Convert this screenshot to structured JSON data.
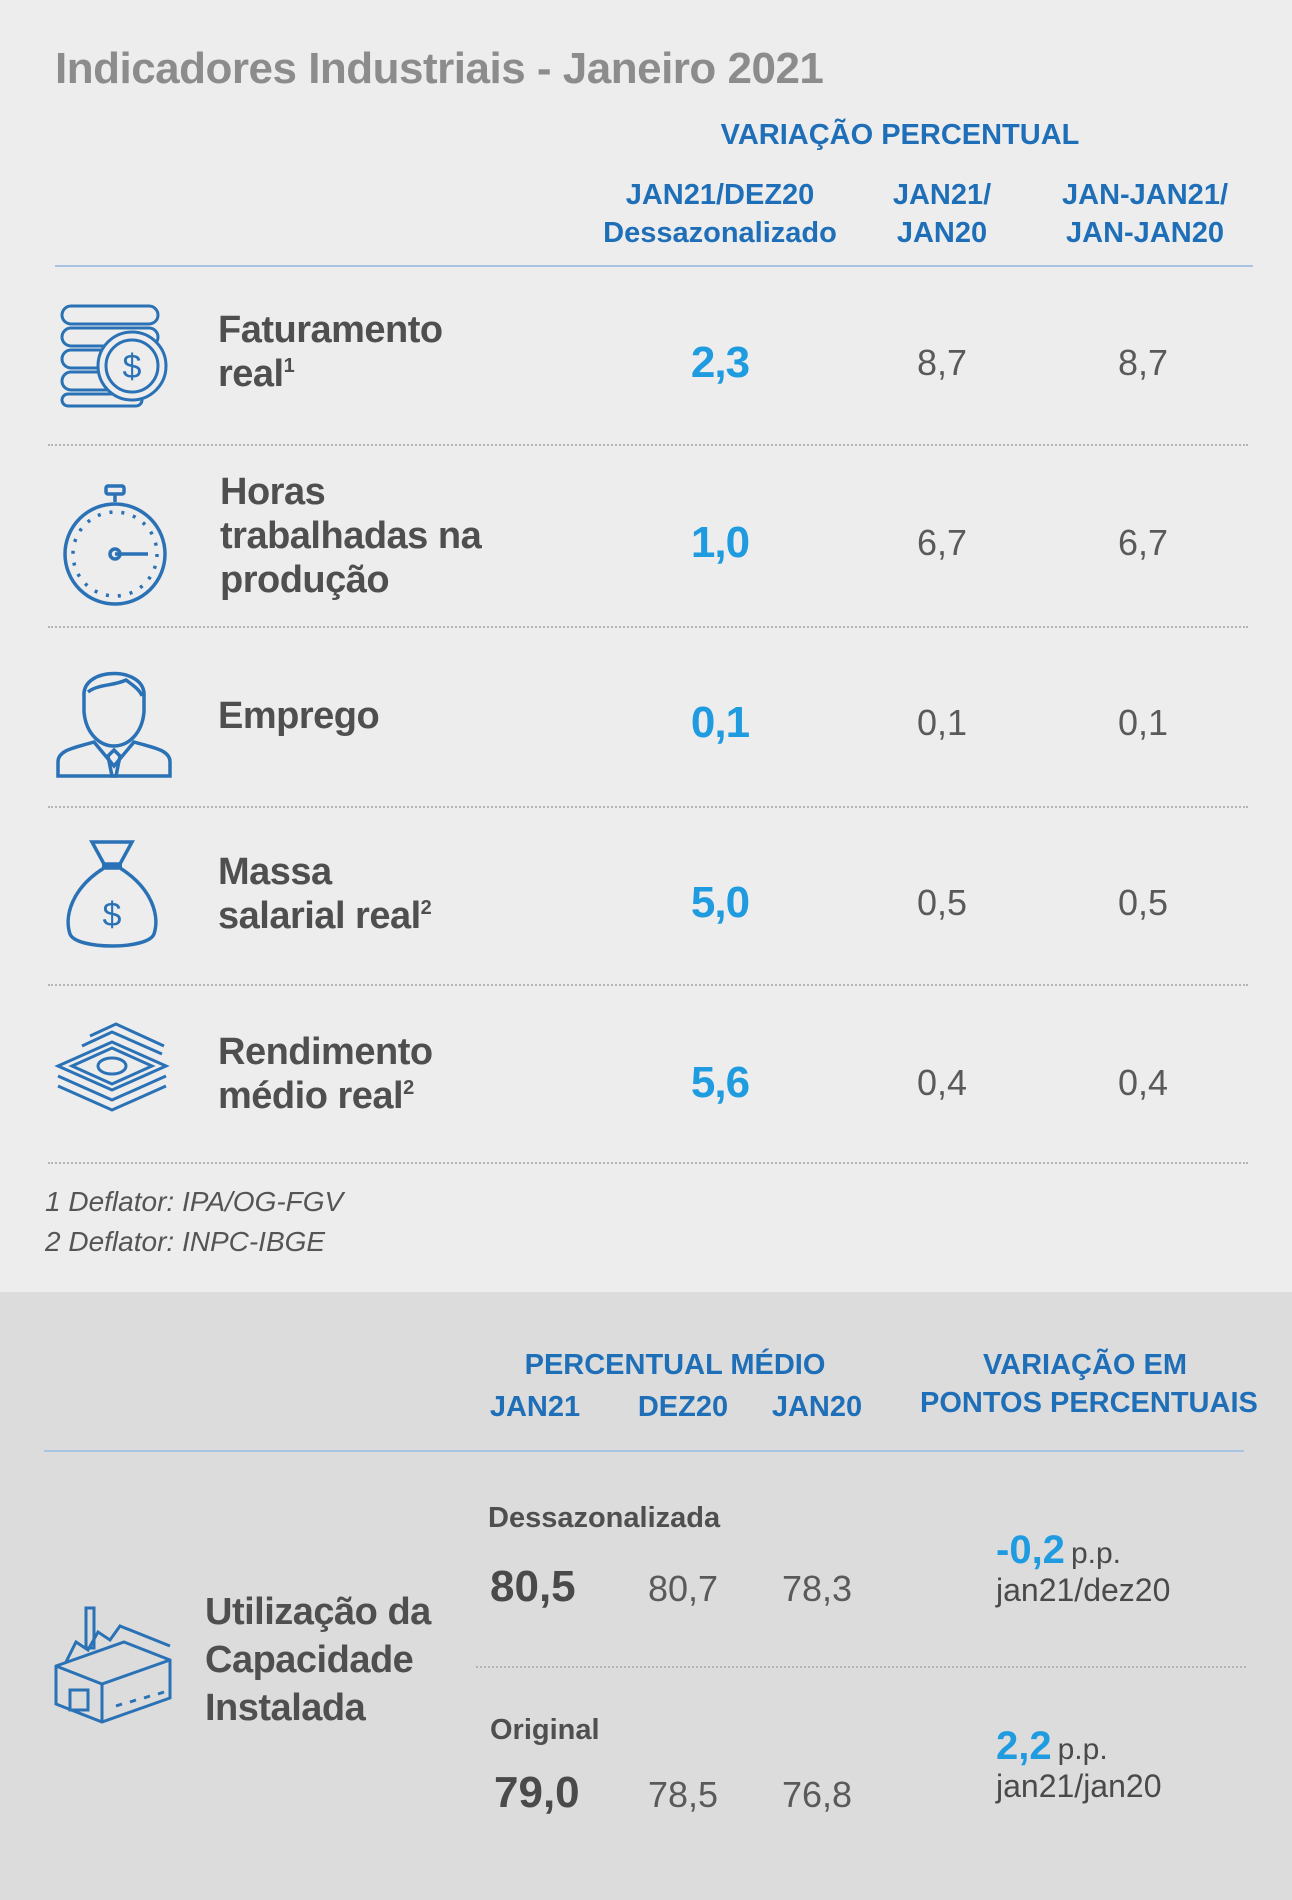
{
  "title": "Indicadores Industriais - Janeiro 2021",
  "top_table": {
    "group_header": "VARIAÇÃO PERCENTUAL",
    "columns": [
      {
        "line1": "JAN21/DEZ20",
        "line2": "Dessazonalizado"
      },
      {
        "line1": "JAN21/",
        "line2": "JAN20"
      },
      {
        "line1": "JAN-JAN21/",
        "line2": "JAN-JAN20"
      }
    ],
    "rows": [
      {
        "icon": "coins-dollar-icon",
        "label_lines": [
          "Faturamento",
          "real"
        ],
        "sup": "1",
        "values": [
          "2,3",
          "8,7",
          "8,7"
        ]
      },
      {
        "icon": "stopwatch-icon",
        "label_lines": [
          "Horas",
          "trabalhadas na",
          "produção"
        ],
        "sup": "",
        "values": [
          "1,0",
          "6,7",
          "6,7"
        ]
      },
      {
        "icon": "businessman-icon",
        "label_lines": [
          "Emprego"
        ],
        "sup": "",
        "values": [
          "0,1",
          "0,1",
          "0,1"
        ]
      },
      {
        "icon": "money-bag-icon",
        "label_lines": [
          "Massa",
          "salarial real"
        ],
        "sup": "2",
        "values": [
          "5,0",
          "0,5",
          "0,5"
        ]
      },
      {
        "icon": "cash-stack-icon",
        "label_lines": [
          "Rendimento",
          "médio real"
        ],
        "sup": "2",
        "values": [
          "5,6",
          "0,4",
          "0,4"
        ]
      }
    ],
    "footnotes": [
      "1 Deflator: IPA/OG-FGV",
      "2 Deflator: INPC-IBGE"
    ]
  },
  "bottom_table": {
    "group_header_left": "PERCENTUAL MÉDIO",
    "columns_left": [
      "JAN21",
      "DEZ20",
      "JAN20"
    ],
    "group_header_right": [
      "VARIAÇÃO EM",
      "PONTOS PERCENTUAIS"
    ],
    "icon": "factory-icon",
    "label_lines": [
      "Utilização da",
      "Capacidade",
      "Instalada"
    ],
    "rows": [
      {
        "sublabel": "Dessazonalizada",
        "values": [
          "80,5",
          "80,7",
          "78,3"
        ],
        "pp_value": "-0,2",
        "pp_unit": "p.p.",
        "pp_period": "jan21/dez20"
      },
      {
        "sublabel": "Original",
        "values": [
          "79,0",
          "78,5",
          "76,8"
        ],
        "pp_value": "2,2",
        "pp_unit": "p.p.",
        "pp_period": "jan21/jan20"
      }
    ]
  },
  "colors": {
    "accent_blue": "#1e6fb8",
    "value_blue": "#1f9be0",
    "icon_blue": "#2a72b5"
  }
}
